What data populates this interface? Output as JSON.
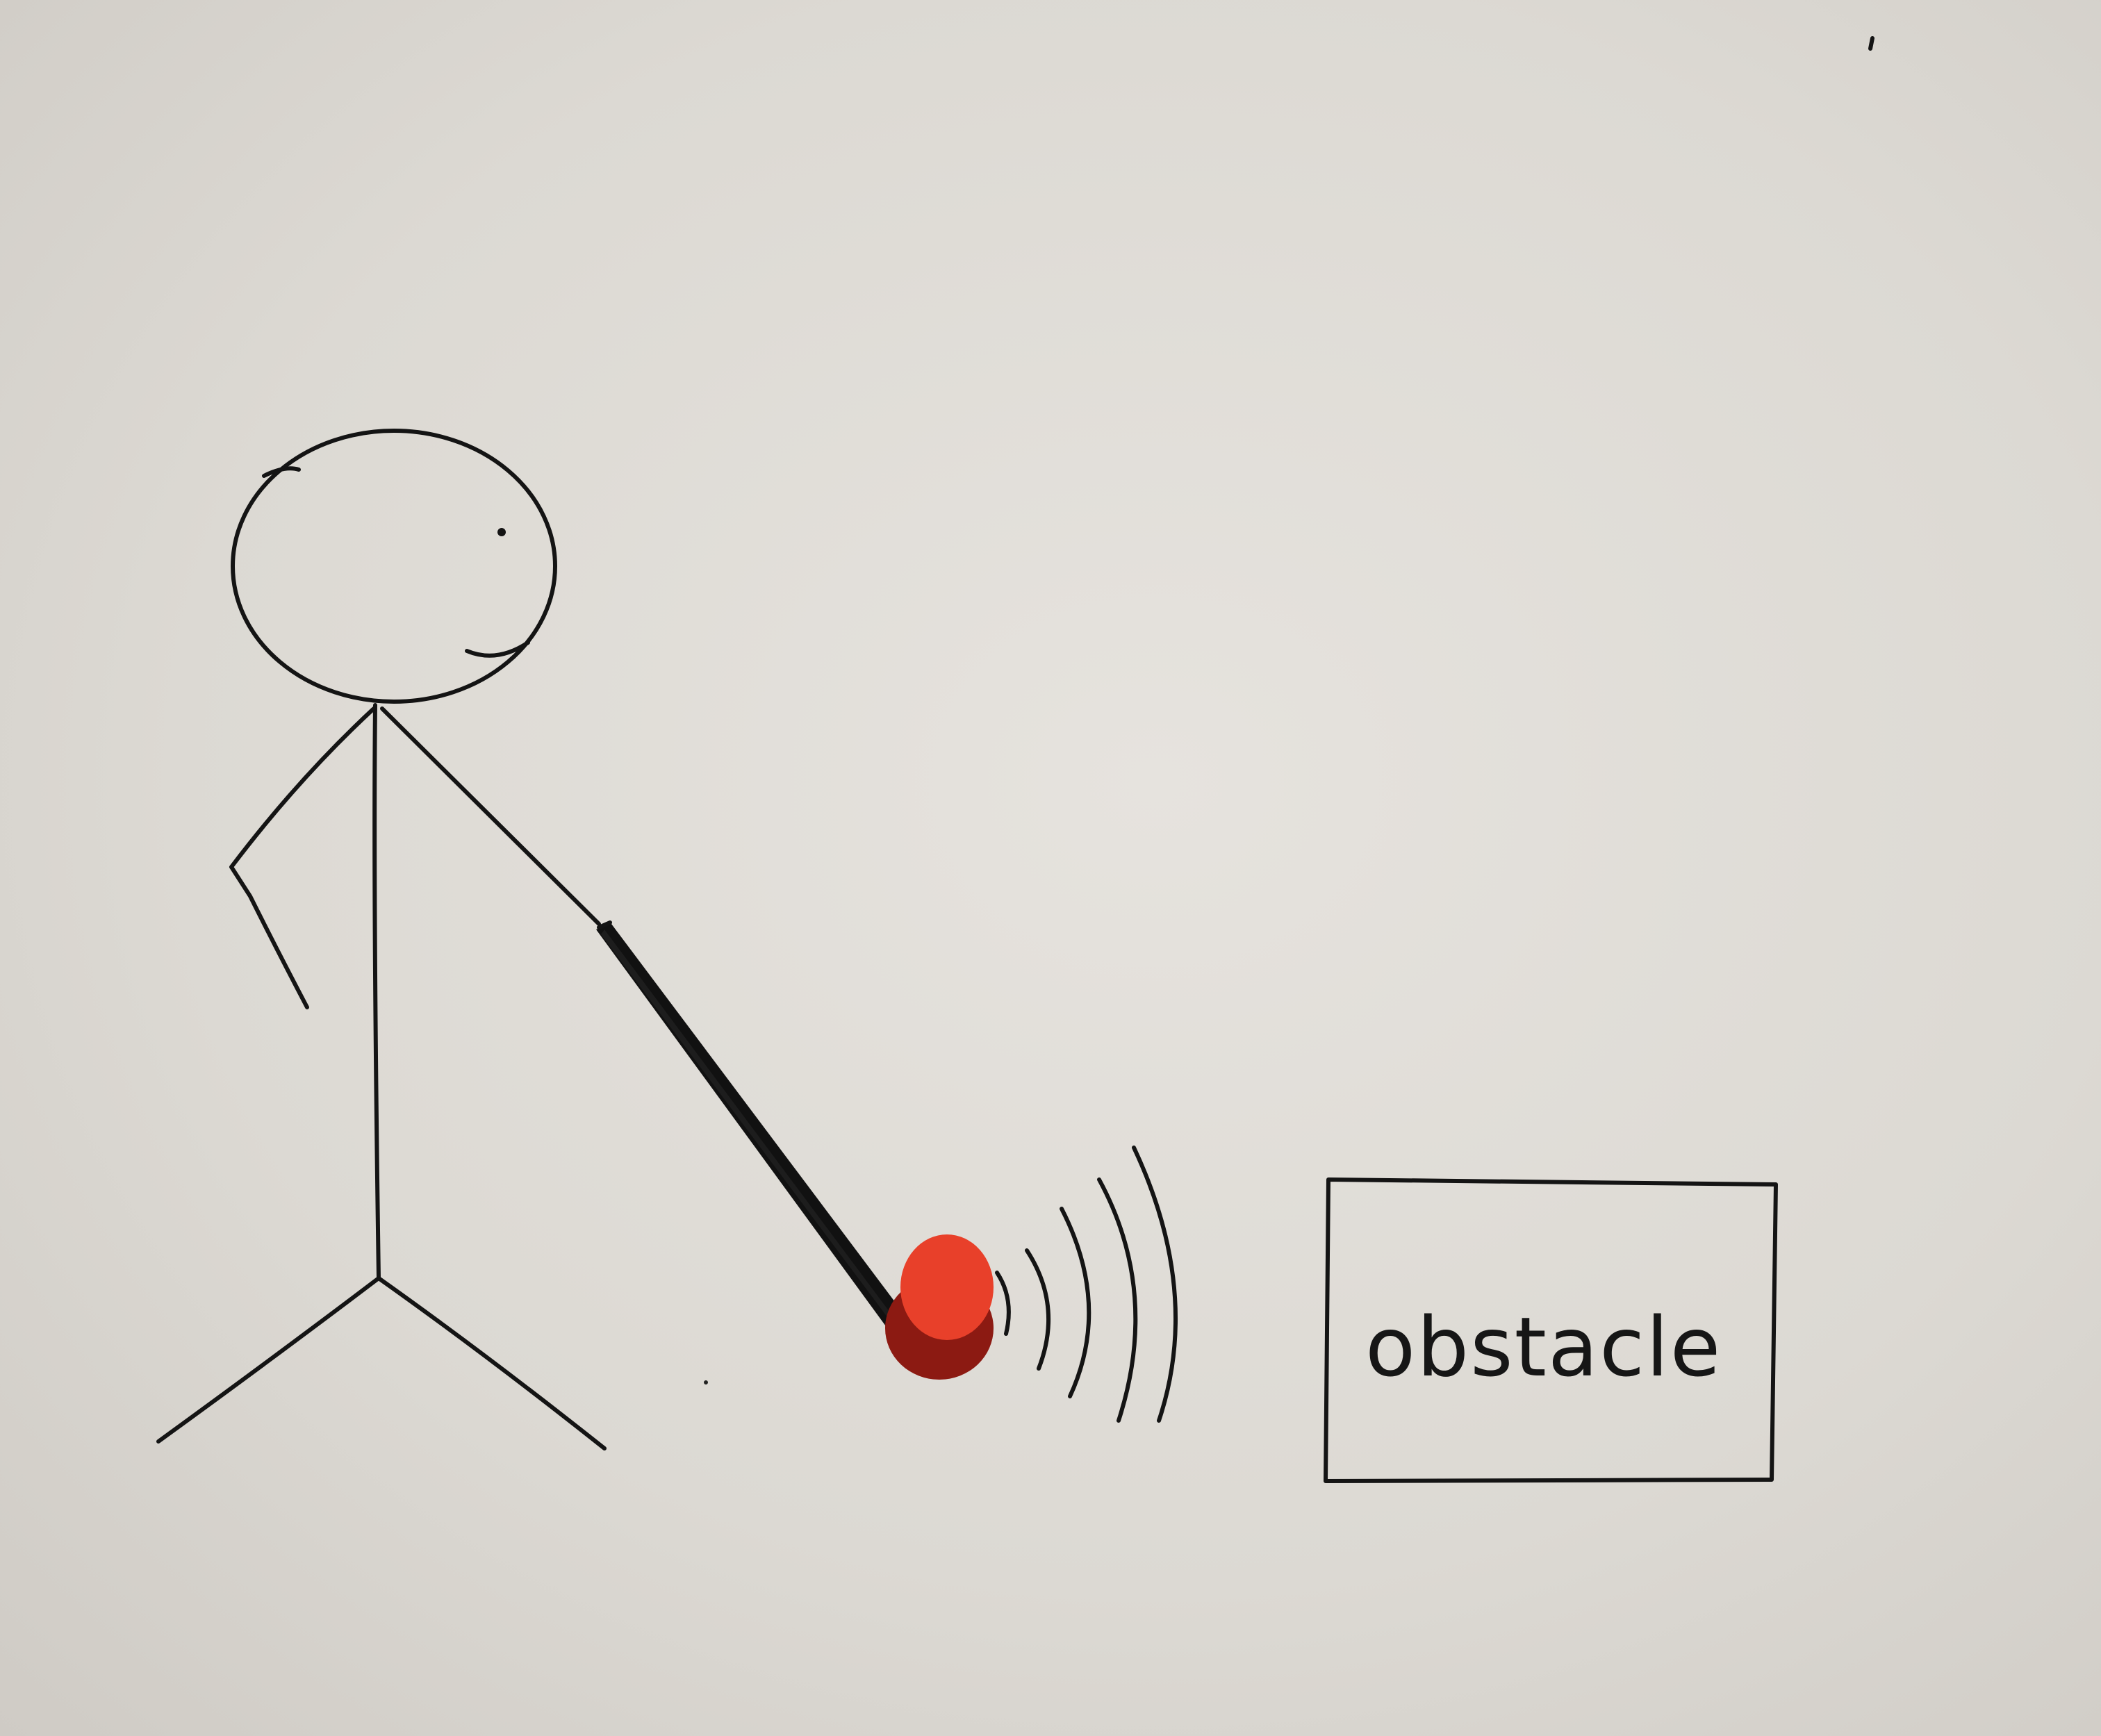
{
  "obstacle": {
    "label": "obstacle"
  },
  "figures": [
    {
      "name": "stick-figure",
      "description_icon": "person-icon"
    },
    {
      "name": "white-cane",
      "description_icon": "cane-icon"
    },
    {
      "name": "cane-sensor",
      "description_icon": "sensor-dot-icon",
      "color": "#e8402a"
    },
    {
      "name": "signal-waves",
      "description_icon": "wave-icon"
    }
  ],
  "colors": {
    "paper": "#dedbd6",
    "ink": "#141414",
    "sensor": "#e8402a",
    "sensor_shadow": "#8c1a12"
  }
}
